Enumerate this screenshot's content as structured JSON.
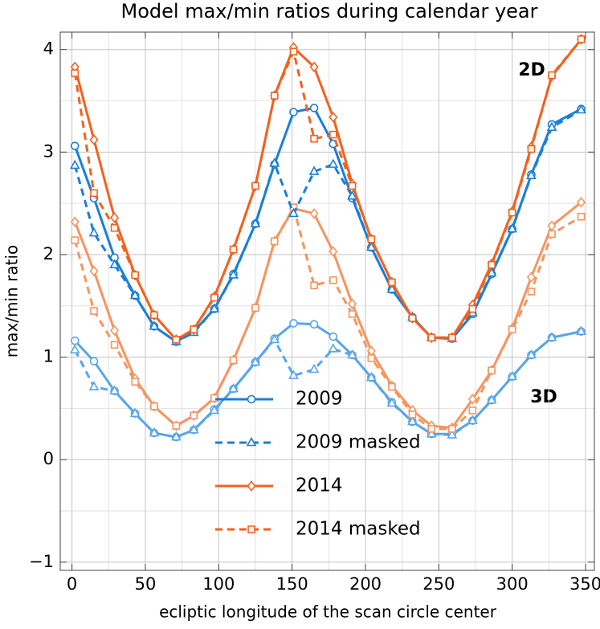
{
  "chart_data": {
    "type": "line",
    "title": "Model max/min ratios during calendar year",
    "xlabel": "ecliptic longitude of the scan circle center",
    "ylabel": "max/min ratio",
    "annotations": [
      "2D",
      "3D"
    ],
    "x": [
      2,
      15,
      29,
      43,
      56,
      71,
      83,
      97,
      110,
      125,
      138,
      151,
      165,
      178,
      191,
      204,
      218,
      232,
      245,
      259,
      273,
      286,
      300,
      313,
      327,
      347
    ],
    "xlim": [
      -8,
      356
    ],
    "ylim": [
      -1.08,
      4.17
    ],
    "xticks": [
      0,
      50,
      100,
      150,
      200,
      250,
      300,
      350
    ],
    "yticks": [
      {
        "value": -1,
        "label": "−1"
      },
      0,
      1,
      2,
      3,
      4
    ],
    "xminor": [
      25,
      75,
      125,
      175,
      225,
      275,
      325
    ],
    "yminor": [
      -0.5,
      0.5,
      1.5,
      2.5,
      3.5
    ],
    "grid": true,
    "series": [
      {
        "name": "2009",
        "color": "#1a7fd6",
        "color_3d": "#5aa5e8",
        "dashed": false,
        "marker": "circle",
        "values": [
          3.06,
          2.55,
          1.97,
          1.6,
          1.3,
          1.15,
          1.25,
          1.47,
          1.81,
          2.3,
          2.88,
          3.39,
          3.43,
          3.08,
          2.55,
          2.07,
          1.66,
          1.39,
          1.19,
          1.18,
          1.42,
          1.81,
          2.25,
          2.78,
          3.27,
          3.42
        ],
        "values_3d": [
          1.16,
          0.96,
          0.67,
          0.45,
          0.26,
          0.22,
          0.29,
          0.49,
          0.69,
          0.95,
          1.18,
          1.33,
          1.32,
          1.2,
          1.02,
          0.8,
          0.56,
          0.37,
          0.25,
          0.25,
          0.38,
          0.58,
          0.81,
          1.02,
          1.19,
          1.25
        ]
      },
      {
        "name": "2009 masked",
        "color": "#1a7fd6",
        "color_3d": "#5aa5e8",
        "dashed": true,
        "marker": "triangle",
        "values": [
          2.87,
          2.21,
          1.9,
          1.6,
          1.3,
          1.15,
          1.24,
          1.47,
          1.8,
          2.3,
          2.89,
          2.4,
          2.81,
          2.88,
          2.57,
          2.07,
          1.66,
          1.39,
          1.19,
          1.18,
          1.43,
          1.82,
          2.25,
          2.77,
          3.24,
          3.41
        ],
        "values_3d": [
          1.07,
          0.71,
          0.67,
          0.45,
          0.26,
          0.22,
          0.29,
          0.48,
          0.69,
          0.95,
          1.17,
          0.82,
          0.88,
          1.08,
          1.02,
          0.8,
          0.55,
          0.37,
          0.25,
          0.24,
          0.38,
          0.58,
          0.81,
          1.02,
          1.19,
          1.25
        ]
      },
      {
        "name": "2014",
        "color": "#f2621e",
        "color_3d": "#f59560",
        "dashed": false,
        "marker": "diamond",
        "values": [
          3.83,
          3.12,
          2.36,
          1.8,
          1.41,
          1.17,
          1.27,
          1.59,
          2.05,
          2.67,
          3.55,
          4.02,
          3.83,
          3.34,
          2.69,
          2.15,
          1.73,
          1.38,
          1.19,
          1.19,
          1.51,
          1.91,
          2.42,
          3.05,
          3.74,
          4.1
        ],
        "values_3d": [
          2.32,
          1.84,
          1.26,
          0.79,
          0.52,
          0.33,
          0.43,
          0.6,
          0.97,
          1.48,
          2.13,
          2.45,
          2.4,
          2.03,
          1.52,
          1.06,
          0.72,
          0.48,
          0.33,
          0.31,
          0.59,
          0.87,
          1.28,
          1.78,
          2.28,
          2.51
        ]
      },
      {
        "name": "2014 masked",
        "color": "#f2621e",
        "color_3d": "#f59560",
        "dashed": true,
        "marker": "square",
        "values": [
          3.77,
          2.6,
          2.26,
          1.8,
          1.41,
          1.17,
          1.27,
          1.58,
          2.05,
          2.67,
          3.55,
          3.98,
          3.13,
          3.17,
          2.67,
          2.15,
          1.73,
          1.38,
          1.19,
          1.19,
          1.47,
          1.9,
          2.41,
          3.03,
          3.75,
          4.1
        ],
        "values_3d": [
          2.14,
          1.45,
          1.12,
          0.76,
          0.52,
          0.33,
          0.43,
          0.6,
          0.97,
          1.48,
          2.13,
          2.46,
          1.7,
          1.75,
          1.42,
          0.99,
          0.71,
          0.44,
          0.3,
          0.3,
          0.48,
          0.87,
          1.27,
          1.64,
          2.2,
          2.37
        ]
      }
    ]
  }
}
